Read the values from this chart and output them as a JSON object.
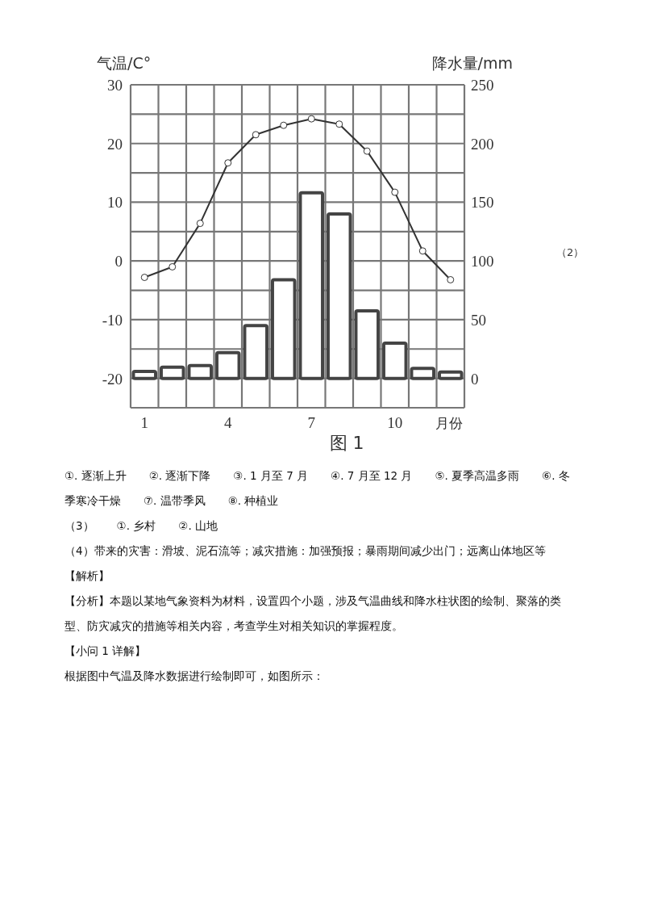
{
  "chart_data": {
    "type": "bar",
    "title": "图 1",
    "xlabel": "月份",
    "ylabel": "气温/C°",
    "y2label": "降水量/mm",
    "categories": [
      "1",
      null,
      null,
      "4",
      null,
      null,
      "7",
      null,
      null,
      "10",
      null,
      null
    ],
    "series": [
      {
        "axis": "y2",
        "color": "#444444",
        "values": [
          6,
          9.5,
          11,
          22,
          45,
          84,
          158,
          140,
          57.5,
          30,
          8.5,
          5.5
        ]
      },
      {
        "type": "line",
        "color": "#333333",
        "marker": "circle",
        "values": [
          -2.8,
          -1,
          6.4,
          16.7,
          21.5,
          23.1,
          24.2,
          23.3,
          18.7,
          11.7,
          1.7,
          -3.2
        ]
      }
    ],
    "ylim": [
      -25,
      30
    ],
    "yticks": [
      -20,
      {
        "value": -15,
        "label": null
      },
      -10,
      {
        "value": -5,
        "label": null
      },
      0,
      {
        "value": 5,
        "label": null
      },
      10,
      {
        "value": 15,
        "label": null
      },
      20,
      {
        "value": 25,
        "label": null
      },
      30
    ],
    "y2lim": [
      -25,
      250
    ],
    "y2ticks": [
      0,
      50,
      100,
      150,
      200,
      250
    ],
    "grid": true,
    "annotations": [
      "（2）",
      "①. 逐渐上升　　②. 逐渐下降　　③. 1 月至 7 月　　④. 7 月至 12 月　　⑤. 夏季高温多雨　　⑥. 冬季寒冷干燥　　⑦. 温带季风　　⑧. 种植业",
      "（3）　　①. 乡村　　②. 山地",
      "（4）带来的灾害：滑坡、泥石流等；减灾措施：加强预报；暴雨期间减少出门；远离山体地区等",
      "【解析】",
      "【分析】本题以某地气象资料为材料，设置四个小题，涉及气温曲线和降水柱状图的绘制、聚落的类型、防灾减灾的措施等相关内容，考查学生对相关知识的掌握程度。",
      "【小问 1 详解】",
      "根据图中气温及降水数据进行绘制即可，如图所示："
    ]
  }
}
